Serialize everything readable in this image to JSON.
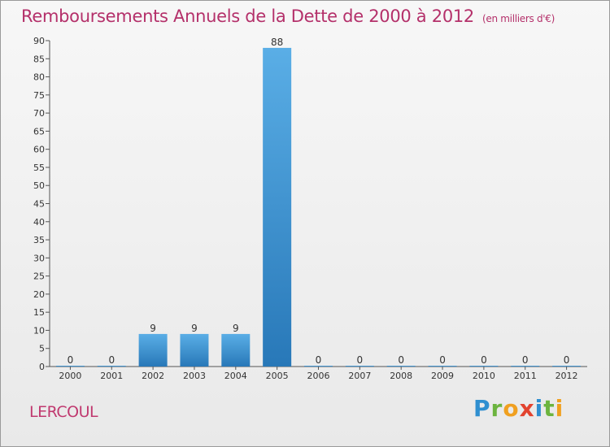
{
  "title": "Remboursements Annuels de la Dette de 2000 à 2012",
  "subtitle": "(en milliers d'€)",
  "commune": "LERCOUL",
  "logo": {
    "letters": [
      "P",
      "r",
      "o",
      "x",
      "i",
      "t",
      "i"
    ]
  },
  "colors": {
    "title": "#b4306a",
    "bar_top": "#5aaee6",
    "bar_bottom": "#2878b8"
  },
  "chart_data": {
    "type": "bar",
    "title": "Remboursements Annuels de la Dette de 2000 à 2012",
    "xlabel": "",
    "ylabel": "",
    "categories": [
      "2000",
      "2001",
      "2002",
      "2003",
      "2004",
      "2005",
      "2006",
      "2007",
      "2008",
      "2009",
      "2010",
      "2011",
      "2012"
    ],
    "values": [
      0,
      0,
      9,
      9,
      9,
      88,
      0,
      0,
      0,
      0,
      0,
      0,
      0
    ],
    "value_labels": [
      "0",
      "0",
      "9",
      "9",
      "9",
      "88",
      "0",
      "0",
      "0",
      "0",
      "0",
      "0",
      "0"
    ],
    "ylim": [
      0,
      90
    ],
    "yticks": [
      0,
      5,
      10,
      15,
      20,
      25,
      30,
      35,
      40,
      45,
      50,
      55,
      60,
      65,
      70,
      75,
      80,
      85,
      90
    ],
    "grid": false
  }
}
